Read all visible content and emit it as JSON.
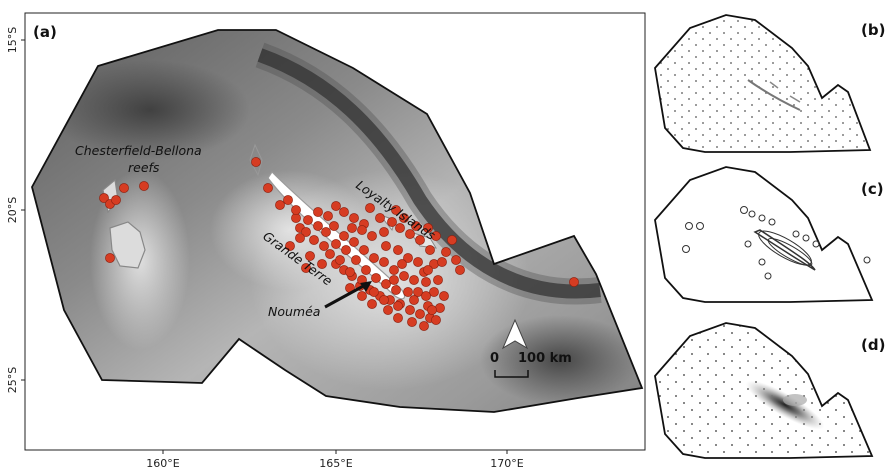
{
  "main_map": {
    "panel_label": "(a)",
    "x_ticks": [
      "160°E",
      "165°E",
      "170°E"
    ],
    "y_ticks": [
      "15°S",
      "20°S",
      "25°S"
    ],
    "labels": {
      "chesterfield_line1": "Chesterfield-Bellona",
      "chesterfield_line2": "reefs",
      "loyalty": "Loyalty Islands",
      "grande_terre": "Grande Terre",
      "noumea": "Nouméa"
    },
    "scale_bar": {
      "zero": "0",
      "distance": "100 km"
    },
    "colors": {
      "points": "#d63c22",
      "outline": "#111111",
      "land_outline": "#888888"
    },
    "north_arrow": "north-arrow"
  },
  "insets": [
    {
      "panel_label": "(b)",
      "fill": "dotted"
    },
    {
      "panel_label": "(c)",
      "fill": "contours"
    },
    {
      "panel_label": "(d)",
      "fill": "dotted-gradient"
    }
  ]
}
